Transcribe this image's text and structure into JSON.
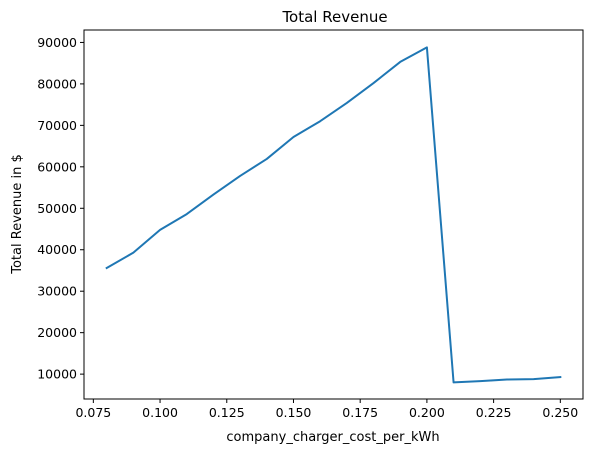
{
  "chart_data": {
    "type": "line",
    "title": "Total Revenue",
    "xlabel": "company_charger_cost_per_kWh",
    "ylabel": "Total Revenue in $",
    "xlim": [
      0.0715,
      0.2585
    ],
    "ylim": [
      4000,
      93000
    ],
    "xticks": [
      0.075,
      0.1,
      0.125,
      0.15,
      0.175,
      0.2,
      0.225,
      0.25
    ],
    "xtick_labels": [
      "0.075",
      "0.100",
      "0.125",
      "0.150",
      "0.175",
      "0.200",
      "0.225",
      "0.250"
    ],
    "yticks": [
      10000,
      20000,
      30000,
      40000,
      50000,
      60000,
      70000,
      80000,
      90000
    ],
    "ytick_labels": [
      "10000",
      "20000",
      "30000",
      "40000",
      "50000",
      "60000",
      "70000",
      "80000",
      "90000"
    ],
    "grid": false,
    "series": [
      {
        "color": "#1f77b4",
        "x": [
          0.08,
          0.09,
          0.1,
          0.11,
          0.12,
          0.13,
          0.14,
          0.15,
          0.16,
          0.17,
          0.18,
          0.19,
          0.2,
          0.21,
          0.22,
          0.23,
          0.24,
          0.25
        ],
        "y": [
          35600,
          39300,
          44800,
          48600,
          53300,
          57800,
          61900,
          67200,
          71000,
          75400,
          80200,
          85300,
          88800,
          8000,
          8300,
          8700,
          8800,
          9300
        ]
      }
    ]
  }
}
